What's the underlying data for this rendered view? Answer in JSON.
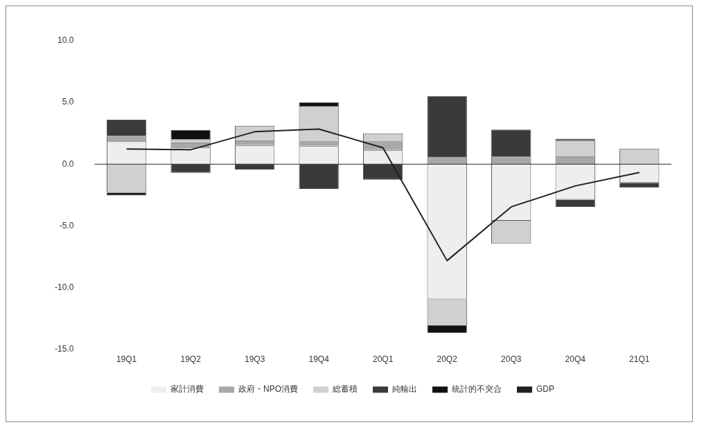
{
  "chart_data": {
    "type": "bar",
    "stacked": true,
    "categories": [
      "19Q1",
      "19Q2",
      "19Q3",
      "19Q4",
      "20Q1",
      "20Q2",
      "20Q3",
      "20Q4",
      "21Q1"
    ],
    "series": [
      {
        "name": "家計消費",
        "color": "#eeeeee",
        "values": [
          1.85,
          1.35,
          1.54,
          1.48,
          1.15,
          -10.96,
          -4.59,
          -2.87,
          -1.52
        ]
      },
      {
        "name": "政府・NPO消費",
        "color": "#a8a8a8",
        "values": [
          0.43,
          0.41,
          0.39,
          0.37,
          0.7,
          0.63,
          0.61,
          0.65,
          null
        ]
      },
      {
        "name": "総蓄積",
        "color": "#d0d0d0",
        "values": [
          -2.32,
          0.24,
          1.18,
          2.87,
          0.65,
          -2.15,
          -1.84,
          1.29,
          1.26
        ]
      },
      {
        "name": "純輸出",
        "color": "#3a3a3a",
        "values": [
          1.33,
          -0.7,
          -0.43,
          -2.0,
          -1.26,
          4.89,
          2.2,
          -0.59,
          -0.39
        ]
      },
      {
        "name": "統計的不突合",
        "color": "#111111",
        "values": [
          -0.22,
          0.78,
          null,
          0.28,
          null,
          -0.56,
          null,
          0.12,
          null
        ]
      },
      {
        "name": "GDP",
        "type": "line",
        "color": "#231f20",
        "values": [
          1.24,
          1.17,
          2.63,
          2.85,
          1.33,
          -7.82,
          -3.46,
          -1.76,
          -0.67
        ]
      }
    ],
    "ylim": [
      -15,
      10
    ],
    "yticks": [
      {
        "value": -15,
        "label": "-15.0"
      },
      {
        "value": -10,
        "label": "-10.0"
      },
      {
        "value": -5,
        "label": "-5.0"
      },
      {
        "value": 0,
        "label": "0.0"
      },
      {
        "value": 5,
        "label": "5.0"
      },
      {
        "value": 10,
        "label": "10.0"
      }
    ],
    "grid": false,
    "ref_lines": [
      {
        "axis": "y",
        "value": 0,
        "color": "#222222"
      }
    ],
    "legend": "bottom",
    "marker": "none",
    "line_style": "solid"
  }
}
